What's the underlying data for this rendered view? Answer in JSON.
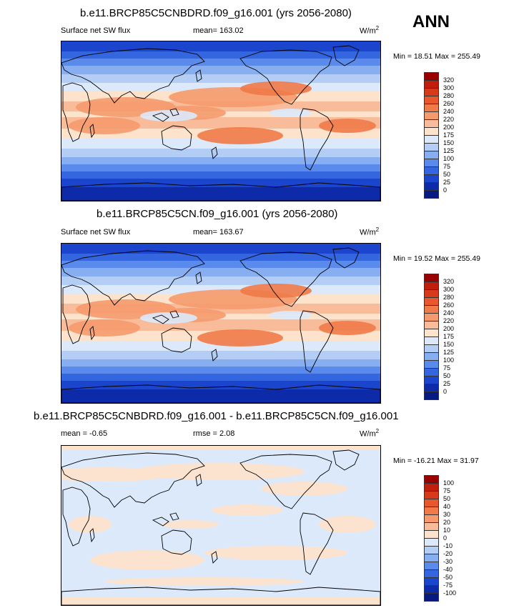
{
  "season": "ANN",
  "units_base": "W/m",
  "units_exp": "2",
  "panels": [
    {
      "title": "b.e11.BRCP85C5CNBDRD.f09_g16.001 (yrs 2056-2080)",
      "left_label": "Surface net SW flux",
      "center_label": "mean= 163.02",
      "minmax": "Min =  18.51 Max = 255.49",
      "colorbar": [
        "320",
        "300",
        "280",
        "260",
        "240",
        "220",
        "200",
        "175",
        "150",
        "125",
        "100",
        "75",
        "50",
        "25",
        "0"
      ]
    },
    {
      "title": "b.e11.BRCP85C5CN.f09_g16.001 (yrs 2056-2080)",
      "left_label": "Surface net SW flux",
      "center_label": "mean= 163.67",
      "minmax": "Min =  19.52 Max = 255.49",
      "colorbar": [
        "320",
        "300",
        "280",
        "260",
        "240",
        "220",
        "200",
        "175",
        "150",
        "125",
        "100",
        "75",
        "50",
        "25",
        "0"
      ]
    },
    {
      "title": "b.e11.BRCP85C5CNBDRD.f09_g16.001 - b.e11.BRCP85C5CN.f09_g16.001",
      "left_label": "mean =  -0.65",
      "center_label": "rmse =   2.08",
      "minmax": "Min = -16.21 Max =  31.97",
      "colorbar": [
        "100",
        "75",
        "50",
        "40",
        "30",
        "20",
        "10",
        "0",
        "-10",
        "-20",
        "-30",
        "-40",
        "-50",
        "-75",
        "-100"
      ]
    }
  ],
  "colors": {
    "abs_scale": [
      "#990000",
      "#bf1f0c",
      "#d63a1a",
      "#e8582c",
      "#f07a48",
      "#f59a6e",
      "#f9bc9a",
      "#fde3cc",
      "#dce9fb",
      "#b3cdf5",
      "#87aef0",
      "#5a8bec",
      "#3466e0",
      "#1b45cc",
      "#0d2aa8",
      "#061a82"
    ],
    "diff_scale": [
      "#990000",
      "#bf1f0c",
      "#d63a1a",
      "#e8582c",
      "#f07a48",
      "#f59a6e",
      "#f9bc9a",
      "#fde3cc",
      "#dce9fb",
      "#b3cdf5",
      "#87aef0",
      "#5a8bec",
      "#3466e0",
      "#1b45cc",
      "#0d2aa8",
      "#061a82"
    ]
  }
}
